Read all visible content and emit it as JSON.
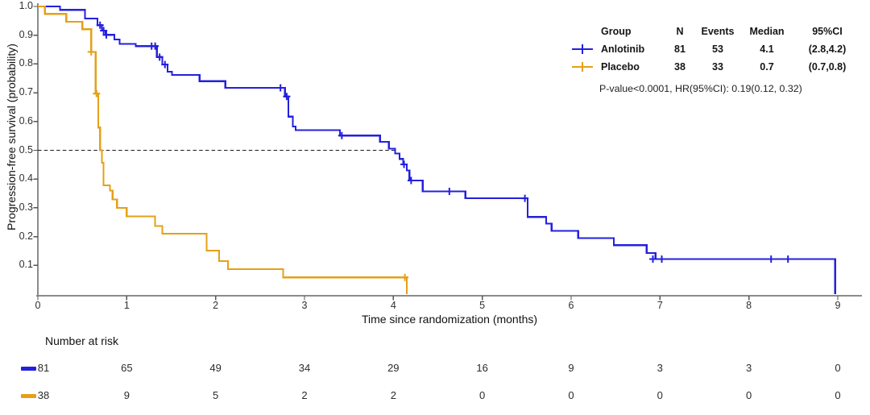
{
  "chart_data": {
    "type": "line",
    "subtype": "kaplan-meier-step",
    "title": "",
    "xlabel": "Time since randomization (months)",
    "ylabel": "Progression-free survival (probability)",
    "xlim": [
      0,
      9
    ],
    "ylim": [
      0,
      1
    ],
    "xticks": [
      0,
      1,
      2,
      3,
      4,
      5,
      6,
      7,
      8,
      9
    ],
    "yticks": [
      0.1,
      0.2,
      0.3,
      0.4,
      0.5,
      0.6,
      0.7,
      0.8,
      0.9,
      1.0
    ],
    "reference_line_y": 0.5,
    "grid": false,
    "series": [
      {
        "name": "Anlotinib",
        "color": "#2420dd",
        "steps": [
          [
            0,
            1.0
          ],
          [
            0.25,
            0.988
          ],
          [
            0.53,
            0.958
          ],
          [
            0.67,
            0.935
          ],
          [
            0.72,
            0.916
          ],
          [
            0.76,
            0.901
          ],
          [
            0.86,
            0.885
          ],
          [
            0.92,
            0.87
          ],
          [
            1.1,
            0.862
          ],
          [
            1.34,
            0.824
          ],
          [
            1.4,
            0.798
          ],
          [
            1.46,
            0.773
          ],
          [
            1.51,
            0.762
          ],
          [
            1.82,
            0.74
          ],
          [
            2.11,
            0.717
          ],
          [
            2.78,
            0.687
          ],
          [
            2.82,
            0.617
          ],
          [
            2.87,
            0.583
          ],
          [
            2.9,
            0.57
          ],
          [
            3.4,
            0.551
          ],
          [
            3.85,
            0.529
          ],
          [
            3.95,
            0.506
          ],
          [
            4.02,
            0.489
          ],
          [
            4.07,
            0.47
          ],
          [
            4.11,
            0.451
          ],
          [
            4.15,
            0.43
          ],
          [
            4.18,
            0.395
          ],
          [
            4.33,
            0.357
          ],
          [
            4.81,
            0.333
          ],
          [
            5.51,
            0.268
          ],
          [
            5.72,
            0.245
          ],
          [
            5.78,
            0.22
          ],
          [
            6.08,
            0.195
          ],
          [
            6.48,
            0.17
          ],
          [
            6.85,
            0.143
          ],
          [
            6.95,
            0.122
          ],
          [
            8.97,
            0.0
          ]
        ],
        "censors": [
          [
            0.7,
            0.935
          ],
          [
            0.74,
            0.916
          ],
          [
            0.77,
            0.901
          ],
          [
            1.28,
            0.862
          ],
          [
            1.32,
            0.862
          ],
          [
            1.37,
            0.824
          ],
          [
            1.43,
            0.798
          ],
          [
            2.73,
            0.717
          ],
          [
            2.8,
            0.687
          ],
          [
            3.42,
            0.551
          ],
          [
            4.12,
            0.451
          ],
          [
            4.2,
            0.395
          ],
          [
            4.63,
            0.357
          ],
          [
            5.48,
            0.333
          ],
          [
            6.92,
            0.122
          ],
          [
            7.02,
            0.122
          ],
          [
            8.25,
            0.122
          ],
          [
            8.44,
            0.122
          ]
        ]
      },
      {
        "name": "Placebo",
        "color": "#e5a017",
        "steps": [
          [
            0,
            1.0
          ],
          [
            0.08,
            0.974
          ],
          [
            0.32,
            0.947
          ],
          [
            0.5,
            0.921
          ],
          [
            0.6,
            0.842
          ],
          [
            0.65,
            0.697
          ],
          [
            0.68,
            0.579
          ],
          [
            0.7,
            0.5
          ],
          [
            0.72,
            0.457
          ],
          [
            0.74,
            0.378
          ],
          [
            0.81,
            0.36
          ],
          [
            0.84,
            0.329
          ],
          [
            0.89,
            0.3
          ],
          [
            1.0,
            0.27
          ],
          [
            1.32,
            0.237
          ],
          [
            1.4,
            0.21
          ],
          [
            1.9,
            0.151
          ],
          [
            2.04,
            0.115
          ],
          [
            2.14,
            0.087
          ],
          [
            2.76,
            0.058
          ],
          [
            4.15,
            0.0
          ]
        ],
        "censors": [
          [
            0.6,
            0.842
          ],
          [
            0.66,
            0.697
          ],
          [
            4.13,
            0.058
          ]
        ]
      }
    ]
  },
  "legend": {
    "headers": {
      "group": "Group",
      "n": "N",
      "events": "Events",
      "median": "Median",
      "ci": "95%CI"
    },
    "rows": [
      {
        "group": "Anlotinib",
        "n": "81",
        "events": "53",
        "median": "4.1",
        "ci": "(2.8,4.2)"
      },
      {
        "group": "Placebo",
        "n": "38",
        "events": "33",
        "median": "0.7",
        "ci": "(0.7,0.8)"
      }
    ],
    "stats_note": "P-value<0.0001, HR(95%CI): 0.19(0.12, 0.32)"
  },
  "risk_table": {
    "title": "Number at risk",
    "rows": [
      {
        "name": "Anlotinib",
        "values": [
          "81",
          "65",
          "49",
          "34",
          "29",
          "16",
          "9",
          "3",
          "3",
          "0"
        ]
      },
      {
        "name": "Placebo",
        "values": [
          "38",
          "9",
          "5",
          "2",
          "2",
          "0",
          "0",
          "0",
          "0",
          "0"
        ]
      }
    ]
  },
  "style": {
    "axis_color": "#8c8c8c",
    "tick_color": "#555555",
    "reference_line_color": "#1a1a1a"
  }
}
